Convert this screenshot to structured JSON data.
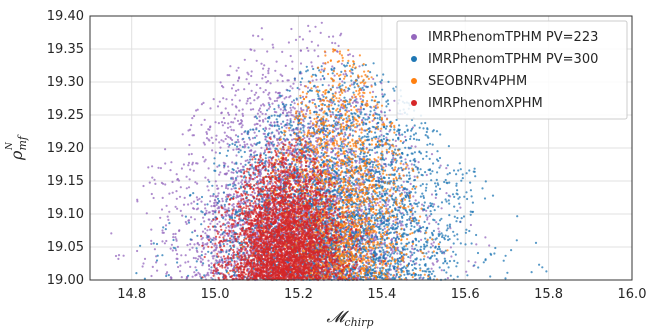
{
  "chart_data": {
    "type": "scatter",
    "title": "",
    "xlabel": "𝓜",
    "xlabel_sub": "chirp",
    "ylabel": "ρ",
    "ylabel_sub": "mf",
    "ylabel_sup": "N",
    "xlim": [
      14.7,
      16.0
    ],
    "ylim": [
      19.0,
      19.4
    ],
    "xticks": [
      "14.8",
      "15.0",
      "15.2",
      "15.4",
      "15.6",
      "15.8",
      "16.0"
    ],
    "yticks": [
      "19.00",
      "19.05",
      "19.10",
      "19.15",
      "19.20",
      "19.25",
      "19.30",
      "19.35",
      "19.40"
    ],
    "grid": true,
    "legend_position": "top-right",
    "series": [
      {
        "name": "IMRPhenomTPHM PV=223",
        "color": "#9467bd",
        "center": [
          15.2,
          19.1
        ],
        "spread": [
          0.14,
          0.1
        ],
        "peak_y": 19.39,
        "x_range": [
          14.75,
          15.9
        ],
        "n": 4000
      },
      {
        "name": "IMRPhenomTPHM PV=300",
        "color": "#1f77b4",
        "center": [
          15.3,
          19.12
        ],
        "spread": [
          0.15,
          0.09
        ],
        "peak_y": 19.33,
        "x_range": [
          14.8,
          15.95
        ],
        "n": 3500
      },
      {
        "name": "SEOBNRv4PHM",
        "color": "#ff7f0e",
        "center": [
          15.3,
          19.18
        ],
        "spread": [
          0.09,
          0.07
        ],
        "peak_y": 19.35,
        "x_range": [
          15.0,
          15.6
        ],
        "n": 1800
      },
      {
        "name": "IMRPhenomXPHM",
        "color": "#d62728",
        "center": [
          15.17,
          19.06
        ],
        "spread": [
          0.07,
          0.06
        ],
        "peak_y": 19.22,
        "x_range": [
          14.95,
          15.5
        ],
        "n": 3500
      }
    ]
  }
}
